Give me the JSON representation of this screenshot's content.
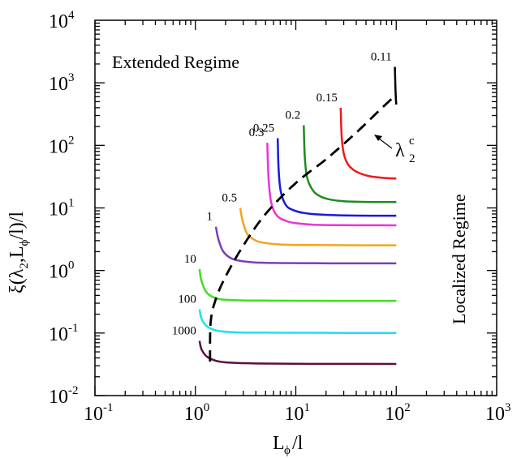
{
  "chart_data": {
    "type": "line",
    "x_scale": "log",
    "y_scale": "log",
    "xlim": [
      0.1,
      1000
    ],
    "ylim": [
      0.01,
      10000
    ],
    "x_ticks": [
      {
        "value": 0.1,
        "base": "10",
        "exp": "-1"
      },
      {
        "value": 1,
        "base": "10",
        "exp": "0"
      },
      {
        "value": 10,
        "base": "10",
        "exp": "1"
      },
      {
        "value": 100,
        "base": "10",
        "exp": "2"
      },
      {
        "value": 1000,
        "base": "10",
        "exp": "3"
      }
    ],
    "y_ticks": [
      {
        "value": 0.01,
        "base": "10",
        "exp": "-2"
      },
      {
        "value": 0.1,
        "base": "10",
        "exp": "-1"
      },
      {
        "value": 1,
        "base": "10",
        "exp": "0"
      },
      {
        "value": 10,
        "base": "10",
        "exp": "1"
      },
      {
        "value": 100,
        "base": "10",
        "exp": "2"
      },
      {
        "value": 1000,
        "base": "10",
        "exp": "3"
      },
      {
        "value": 10000,
        "base": "10",
        "exp": "4"
      }
    ],
    "xlabel": {
      "main": "L",
      "sub": "ϕ",
      "tail": "/l"
    },
    "ylabel": {
      "a": "ξ(λ",
      "sub1": "2",
      "b": ",L",
      "sub2": "ϕ",
      "c": "/l)/l"
    },
    "annotations": {
      "extended": "Extended Regime",
      "localized": "Localized Regime",
      "critical": {
        "main": "λ",
        "sup": "c",
        "sub": "2"
      }
    },
    "series": [
      {
        "label": "1000",
        "color": "#5c0f3f",
        "x": [
          1.1,
          1.15,
          1.3,
          1.6,
          2,
          3,
          5,
          10,
          30,
          100
        ],
        "y": [
          0.075,
          0.055,
          0.042,
          0.036,
          0.034,
          0.033,
          0.0325,
          0.0322,
          0.0321,
          0.032
        ]
      },
      {
        "label": "100",
        "color": "#1ee0ee",
        "x": [
          1.1,
          1.15,
          1.3,
          1.6,
          2,
          3,
          5,
          10,
          30,
          100
        ],
        "y": [
          0.24,
          0.17,
          0.128,
          0.11,
          0.105,
          0.102,
          0.1015,
          0.101,
          0.1005,
          0.1
        ]
      },
      {
        "label": "10",
        "color": "#3ee01e",
        "x": [
          1.1,
          1.15,
          1.3,
          1.6,
          2,
          3,
          5,
          10,
          30,
          100
        ],
        "y": [
          1.05,
          0.68,
          0.44,
          0.36,
          0.34,
          0.332,
          0.33,
          0.328,
          0.327,
          0.327
        ]
      },
      {
        "label": "1",
        "color": "#7a3fb8",
        "x": [
          1.6,
          1.7,
          1.9,
          2.3,
          3,
          4,
          6,
          10,
          30,
          100
        ],
        "y": [
          5,
          3.1,
          2.0,
          1.55,
          1.4,
          1.34,
          1.32,
          1.31,
          1.3,
          1.3
        ]
      },
      {
        "label": "0.5",
        "color": "#f2a51c",
        "x": [
          2.8,
          2.95,
          3.3,
          4,
          5,
          7,
          10,
          20,
          50,
          100
        ],
        "y": [
          10,
          6.2,
          3.8,
          3.0,
          2.75,
          2.6,
          2.56,
          2.54,
          2.53,
          2.53
        ]
      },
      {
        "label": "0.3",
        "color": "#ee32d8",
        "x": [
          5.2,
          5.35,
          5.7,
          6.5,
          8,
          10,
          15,
          30,
          60,
          100
        ],
        "y": [
          110,
          30,
          12,
          7.5,
          6.2,
          5.7,
          5.4,
          5.3,
          5.28,
          5.27
        ]
      },
      {
        "label": "0.25",
        "color": "#1818e0",
        "x": [
          6.6,
          6.75,
          7.1,
          8,
          9.5,
          12,
          18,
          30,
          60,
          100
        ],
        "y": [
          130,
          40,
          18,
          11,
          9.2,
          8.3,
          7.8,
          7.6,
          7.5,
          7.5
        ]
      },
      {
        "label": "0.2",
        "color": "#1f8b1f",
        "x": [
          12,
          12.3,
          13,
          15,
          18,
          22,
          30,
          45,
          70,
          100
        ],
        "y": [
          210,
          65,
          30,
          18.5,
          15,
          13.6,
          12.8,
          12.5,
          12.4,
          12.4
        ]
      },
      {
        "label": "0.15",
        "color": "#ee1a1a",
        "x": [
          28,
          28.6,
          30,
          33,
          38,
          45,
          55,
          70,
          85,
          100
        ],
        "y": [
          400,
          140,
          75,
          50,
          40,
          35,
          32,
          30.5,
          29.8,
          29.5
        ]
      },
      {
        "label": "0.11",
        "color": "#000000",
        "x": [
          97,
          97.8,
          99,
          100
        ],
        "y": [
          1800,
          1000,
          600,
          450
        ]
      }
    ],
    "critical_line": {
      "style": "dashed",
      "color": "#000000",
      "x": [
        1.4,
        1.42,
        1.6,
        2.0,
        3.0,
        5.0,
        10,
        20,
        40,
        70,
        100
      ],
      "y": [
        0.035,
        0.15,
        0.35,
        0.8,
        2.5,
        8,
        25,
        60,
        160,
        380,
        650
      ]
    }
  }
}
